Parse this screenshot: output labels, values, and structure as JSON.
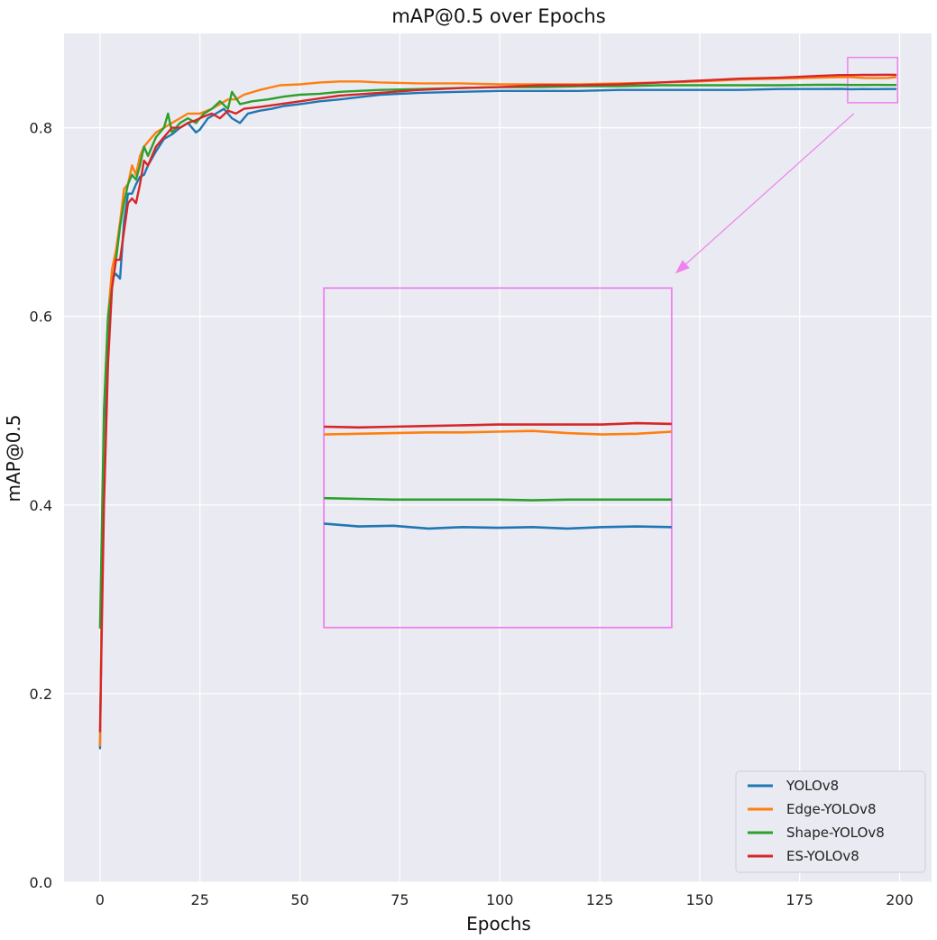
{
  "chart_data": {
    "type": "line",
    "title": "mAP@0.5 over Epochs",
    "xlabel": "Epochs",
    "ylabel": "mAP@0.5",
    "xlim": [
      -9,
      208
    ],
    "ylim": [
      0.0,
      0.9
    ],
    "xticks": [
      0,
      25,
      50,
      75,
      100,
      125,
      150,
      175,
      200
    ],
    "yticks": [
      0.0,
      0.2,
      0.4,
      0.6,
      0.8
    ],
    "grid": true,
    "legend": {
      "position": "bottom-right"
    },
    "colors": {
      "background": "#eaeaf2",
      "grid": "#ffffff",
      "zoom": "#ee82ee"
    },
    "series": [
      {
        "name": "YOLOv8",
        "color": "#1f77b4",
        "x": [
          0,
          1,
          2,
          3,
          4,
          5,
          6,
          7,
          8,
          9,
          10,
          11,
          12,
          14,
          16,
          18,
          20,
          22,
          24,
          25,
          27,
          29,
          31,
          33,
          35,
          37,
          40,
          43,
          46,
          50,
          55,
          60,
          70,
          80,
          90,
          100,
          110,
          120,
          130,
          140,
          150,
          160,
          170,
          180,
          185,
          188,
          191,
          194,
          197,
          199
        ],
        "values": [
          0.142,
          0.48,
          0.58,
          0.64,
          0.645,
          0.64,
          0.7,
          0.73,
          0.73,
          0.74,
          0.748,
          0.75,
          0.76,
          0.775,
          0.788,
          0.793,
          0.8,
          0.805,
          0.795,
          0.798,
          0.81,
          0.815,
          0.82,
          0.81,
          0.805,
          0.815,
          0.818,
          0.82,
          0.823,
          0.825,
          0.828,
          0.83,
          0.835,
          0.837,
          0.838,
          0.839,
          0.839,
          0.839,
          0.84,
          0.84,
          0.84,
          0.84,
          0.841,
          0.841,
          0.8412,
          0.8408,
          0.841,
          0.8409,
          0.841,
          0.841
        ]
      },
      {
        "name": "Edge-YOLOv8",
        "color": "#ff7f0e",
        "x": [
          0,
          1,
          2,
          3,
          4,
          5,
          6,
          7,
          8,
          9,
          10,
          11,
          12,
          14,
          16,
          18,
          20,
          22,
          25,
          28,
          30,
          32,
          34,
          36,
          40,
          45,
          50,
          55,
          60,
          65,
          70,
          80,
          90,
          100,
          110,
          120,
          130,
          140,
          150,
          160,
          170,
          180,
          185,
          188,
          191,
          194,
          197,
          199
        ],
        "values": [
          0.145,
          0.5,
          0.6,
          0.65,
          0.67,
          0.7,
          0.735,
          0.74,
          0.76,
          0.75,
          0.77,
          0.78,
          0.785,
          0.795,
          0.8,
          0.805,
          0.81,
          0.815,
          0.815,
          0.82,
          0.825,
          0.83,
          0.83,
          0.835,
          0.84,
          0.845,
          0.846,
          0.848,
          0.849,
          0.849,
          0.848,
          0.847,
          0.847,
          0.846,
          0.846,
          0.846,
          0.847,
          0.848,
          0.849,
          0.851,
          0.852,
          0.853,
          0.8535,
          0.8535,
          0.8528,
          0.8526,
          0.8528,
          0.8535
        ]
      },
      {
        "name": "Shape-YOLOv8",
        "color": "#2ca02c",
        "x": [
          0,
          1,
          2,
          3,
          4,
          5,
          6,
          7,
          8,
          9,
          10,
          11,
          12,
          14,
          16,
          17,
          18,
          20,
          22,
          24,
          26,
          28,
          30,
          32,
          33,
          35,
          38,
          42,
          46,
          50,
          55,
          60,
          70,
          80,
          90,
          100,
          110,
          120,
          130,
          140,
          150,
          160,
          170,
          180,
          185,
          188,
          191,
          194,
          197,
          199
        ],
        "values": [
          0.27,
          0.5,
          0.6,
          0.63,
          0.66,
          0.695,
          0.72,
          0.74,
          0.75,
          0.745,
          0.76,
          0.78,
          0.77,
          0.79,
          0.8,
          0.815,
          0.795,
          0.805,
          0.81,
          0.805,
          0.815,
          0.82,
          0.828,
          0.82,
          0.838,
          0.825,
          0.828,
          0.83,
          0.833,
          0.835,
          0.836,
          0.838,
          0.84,
          0.841,
          0.842,
          0.843,
          0.843,
          0.844,
          0.844,
          0.845,
          0.845,
          0.845,
          0.845,
          0.8455,
          0.8455,
          0.8453,
          0.8453,
          0.8454,
          0.8453,
          0.8453
        ]
      },
      {
        "name": "ES-YOLOv8",
        "color": "#d62728",
        "x": [
          0,
          1,
          2,
          3,
          4,
          5,
          6,
          7,
          8,
          9,
          10,
          11,
          12,
          14,
          16,
          18,
          20,
          22,
          24,
          26,
          28,
          30,
          32,
          34,
          36,
          40,
          45,
          50,
          55,
          60,
          70,
          80,
          90,
          100,
          110,
          120,
          130,
          140,
          150,
          160,
          170,
          180,
          185,
          188,
          191,
          194,
          197,
          199
        ],
        "values": [
          0.16,
          0.4,
          0.55,
          0.63,
          0.66,
          0.66,
          0.69,
          0.72,
          0.725,
          0.72,
          0.74,
          0.765,
          0.76,
          0.78,
          0.79,
          0.8,
          0.8,
          0.805,
          0.808,
          0.812,
          0.815,
          0.81,
          0.818,
          0.815,
          0.82,
          0.822,
          0.825,
          0.828,
          0.831,
          0.834,
          0.837,
          0.84,
          0.842,
          0.843,
          0.845,
          0.845,
          0.846,
          0.848,
          0.85,
          0.852,
          0.853,
          0.855,
          0.8558,
          0.8558,
          0.856,
          0.856,
          0.8562,
          0.856
        ]
      }
    ],
    "zoom": {
      "source_xlim": [
        187,
        199.5
      ],
      "source_ylim": [
        0.8265,
        0.8745
      ],
      "target_xlim": [
        56,
        143
      ],
      "target_ylim": [
        0.27,
        0.63
      ],
      "series_values": {
        "YOLOv8": [
          0.8412,
          0.8408,
          0.8409,
          0.8405,
          0.8407,
          0.8406,
          0.8407,
          0.8405,
          0.8407,
          0.8408,
          0.8407
        ],
        "Edge-YOLOv8": [
          0.8538,
          0.8539,
          0.854,
          0.8541,
          0.8541,
          0.8542,
          0.8543,
          0.854,
          0.8538,
          0.8539,
          0.8542
        ],
        "Shape-YOLOv8": [
          0.8448,
          0.8447,
          0.8446,
          0.8446,
          0.8446,
          0.8446,
          0.8445,
          0.8446,
          0.8446,
          0.8446,
          0.8446
        ],
        "ES-YOLOv8": [
          0.8549,
          0.8548,
          0.8549,
          0.855,
          0.8551,
          0.8552,
          0.8552,
          0.8552,
          0.8552,
          0.8554,
          0.8553
        ]
      }
    }
  }
}
